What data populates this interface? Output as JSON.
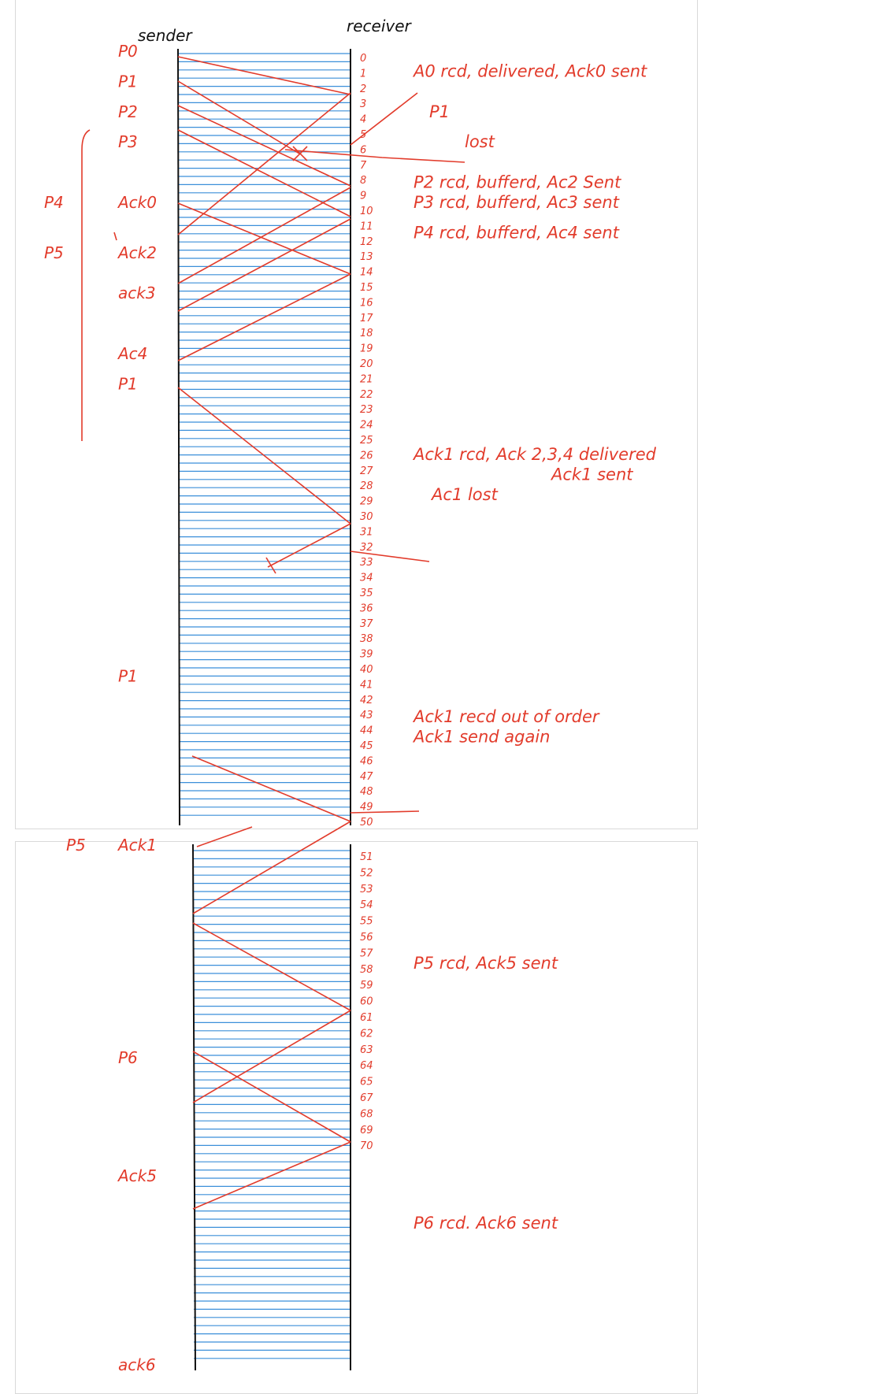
{
  "headers": {
    "sender": "sender",
    "receiver": "receiver"
  },
  "colors": {
    "ink": "#e23b2b",
    "lines": "#3b8fd9",
    "axis": "#111111",
    "panel_border": "#d9d9d9"
  },
  "sender_labels": [
    {
      "text": "P0",
      "slot": 0
    },
    {
      "text": "P1",
      "slot": 3
    },
    {
      "text": "P2",
      "slot": 6
    },
    {
      "text": "P3",
      "slot": 9
    },
    {
      "text": "Ack0",
      "slot": 15
    },
    {
      "text": "Ack2",
      "slot": 20
    },
    {
      "text": "ack3",
      "slot": 24
    },
    {
      "text": "Ac4",
      "slot": 30
    },
    {
      "text": "P1",
      "slot": 33
    },
    {
      "text": "P1",
      "slot": 62
    },
    {
      "text": "Ack1",
      "slot": 81
    },
    {
      "text": "P6",
      "slot": 90
    },
    {
      "text": "Ack5",
      "slot": 95
    },
    {
      "text": "ack6",
      "slot": 103
    }
  ],
  "outer_labels": [
    {
      "text": "P4",
      "slot": 15
    },
    {
      "text": "P5",
      "slot": 20
    },
    {
      "text": "P5",
      "slot": 81
    }
  ],
  "receiver_ticks": [
    "0",
    "1",
    "2",
    "3",
    "4",
    "5",
    "6",
    "7",
    "8",
    "9",
    "10",
    "11",
    "12",
    "13",
    "14",
    "15",
    "16",
    "17",
    "18",
    "19",
    "20",
    "21",
    "22",
    "23",
    "24",
    "25",
    "26",
    "27",
    "28",
    "29",
    "30",
    "31",
    "32",
    "33",
    "34",
    "35",
    "36",
    "37",
    "38",
    "39",
    "40",
    "41",
    "42",
    "43",
    "44",
    "45",
    "46",
    "47",
    "48",
    "49",
    "50",
    "51",
    "52",
    "53",
    "54",
    "55",
    "56",
    "57",
    "58",
    "59",
    "60",
    "61",
    "62",
    "63",
    "64",
    "65",
    "67",
    "68",
    "69",
    "70"
  ],
  "annotations": [
    {
      "text": "A0 rcd, delivered, Ack0 sent",
      "slot": 2
    },
    {
      "text": "P1",
      "slot": 6
    },
    {
      "text": "lost",
      "slot": 9
    },
    {
      "text": "P2 rcd, bufferd, Ac2 Sent",
      "slot": 13
    },
    {
      "text": "P3 rcd, bufferd, Ac3 sent",
      "slot": 15
    },
    {
      "text": "P4 rcd, bufferd, Ac4 sent",
      "slot": 18
    },
    {
      "text": "Ack1 rcd, Ack 2,3,4 delivered",
      "slot": 40
    },
    {
      "text": "Ack1 sent",
      "slot": 42
    },
    {
      "text": "Ac1 lost",
      "slot": 44
    },
    {
      "text": "Ack1 recd out of order",
      "slot": 66
    },
    {
      "text": "Ack1 send again",
      "slot": 68
    },
    {
      "text": "P5 rcd, Ack5 sent",
      "slot": 86
    },
    {
      "text": "P6 rcd. Ack6 sent",
      "slot": 97
    }
  ]
}
